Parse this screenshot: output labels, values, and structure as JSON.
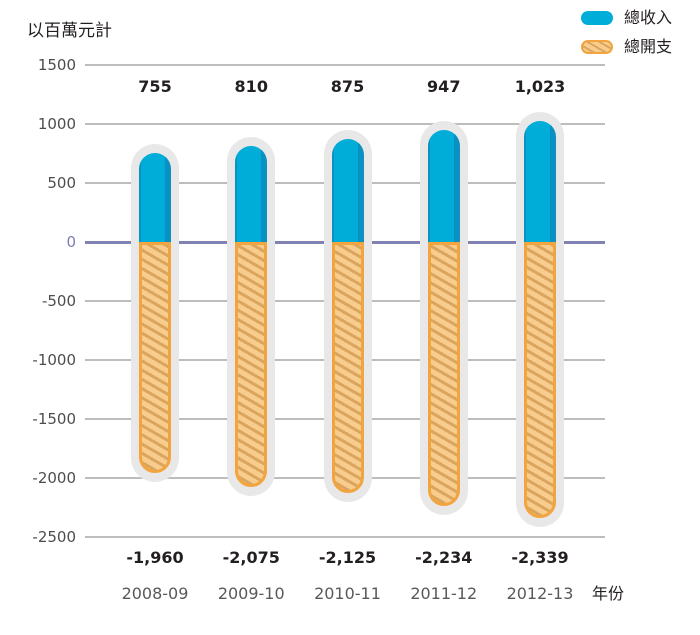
{
  "title": {
    "unit_label": "以百萬元計",
    "x_axis_label": "年份"
  },
  "legend": {
    "items": [
      {
        "label": "總收入",
        "type": "income"
      },
      {
        "label": "總開支",
        "type": "expenditure"
      }
    ]
  },
  "colors": {
    "income": "#00acd8",
    "income_edge": "#0b90c2",
    "expense_border": "#f2a43f",
    "expense_light": "#f8cc8c",
    "expense_stripe": "#dba55e",
    "capsule_track": "#e8e8e8",
    "gridline": "#bdbdbd",
    "zero_line": "#8082b4",
    "tick_text": "#4d4d4f",
    "zero_tick_text": "#7b7db1",
    "value_text": "#231f20",
    "year_text": "#58595b"
  },
  "chart_data": {
    "type": "bar",
    "categories": [
      "2008-09",
      "2009-10",
      "2010-11",
      "2011-12",
      "2012-13"
    ],
    "series": [
      {
        "name": "總收入",
        "values": [
          755,
          810,
          875,
          947,
          1023
        ],
        "labels": [
          "755",
          "810",
          "875",
          "947",
          "1,023"
        ],
        "color": "#00acd8"
      },
      {
        "name": "總開支",
        "values": [
          -1960,
          -2075,
          -2125,
          -2234,
          -2339
        ],
        "labels": [
          "-1,960",
          "-2,075",
          "-2,125",
          "-2,234",
          "-2,339"
        ],
        "color": "#f2a43f"
      }
    ],
    "ylabel": "以百萬元計",
    "xlabel": "年份",
    "yticks": [
      1500,
      1000,
      500,
      0,
      -500,
      -1000,
      -1500,
      -2000,
      -2500
    ],
    "ylim": [
      -2500,
      1500
    ],
    "grid": true,
    "legend_position": "top-right",
    "bar_style": "rounded-capsule, expenditure hatched"
  }
}
